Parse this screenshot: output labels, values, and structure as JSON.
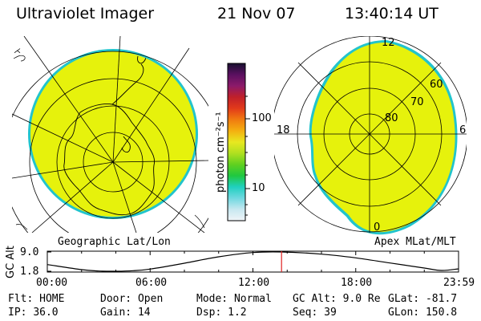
{
  "header": {
    "instrument": "Ultraviolet Imager",
    "date": "21 Nov 07",
    "time": "13:40:14 UT"
  },
  "colors": {
    "aurora_fill": "#e6f20c",
    "edge_cyan": "#22c4cc",
    "time_marker": "#e02020"
  },
  "left_map": {
    "caption": "Geographic Lat/Lon",
    "overlay": "coastlines-and-graticule"
  },
  "right_map": {
    "caption": "Apex MLat/MLT",
    "lat_labels": [
      "60",
      "70",
      "80"
    ],
    "mlt_labels": {
      "top": "12",
      "left": "18",
      "right": "6",
      "bottom": "0"
    }
  },
  "colorbar": {
    "unit_label": "photon cm⁻²s⁻¹",
    "tick_labels": [
      "100",
      "10"
    ],
    "scale": "log",
    "colors_top_to_bottom": [
      "#181030",
      "#5a1060",
      "#8c1a6a",
      "#c0202a",
      "#e23a1a",
      "#f07a10",
      "#f4b010",
      "#e8e820",
      "#b0e020",
      "#60d020",
      "#20c840",
      "#20d0c0",
      "#70d8e0",
      "#c8e8f0",
      "#f0f4f8"
    ]
  },
  "altitude_plot": {
    "ylabel": "GC Alt",
    "ytick_labels": [
      "9.0",
      "1.8"
    ],
    "xtick_labels": [
      "00:00",
      "06:00",
      "12:00",
      "18:00",
      "23:59"
    ],
    "chart_data": {
      "type": "line",
      "x_unit": "hours UT",
      "xlim": [
        0,
        24
      ],
      "ylim": [
        1.8,
        9.0
      ],
      "x": [
        0,
        2,
        3,
        4,
        5,
        6,
        8,
        10,
        12,
        13.67,
        16,
        18,
        20,
        22,
        23,
        24
      ],
      "y": [
        4.3,
        2.4,
        1.9,
        1.8,
        2.0,
        2.6,
        4.8,
        7.2,
        8.8,
        9.0,
        8.2,
        6.8,
        4.9,
        3.0,
        2.1,
        2.7
      ],
      "current_time": 13.67
    }
  },
  "status": {
    "rows": [
      [
        {
          "label": "Flt:",
          "value": "HOME"
        },
        {
          "label": "Door:",
          "value": "Open"
        },
        {
          "label": "Mode:",
          "value": "Normal"
        },
        {
          "label": "GC Alt:",
          "value": "9.0 Re"
        },
        {
          "label": "GLat:",
          "value": "-81.7"
        }
      ],
      [
        {
          "label": "IP:",
          "value": "36.0"
        },
        {
          "label": "Gain:",
          "value": "14"
        },
        {
          "label": "Dsp:",
          "value": "1.2"
        },
        {
          "label": "Seq:",
          "value": "39"
        },
        {
          "label": "GLon:",
          "value": "150.8"
        }
      ]
    ]
  }
}
